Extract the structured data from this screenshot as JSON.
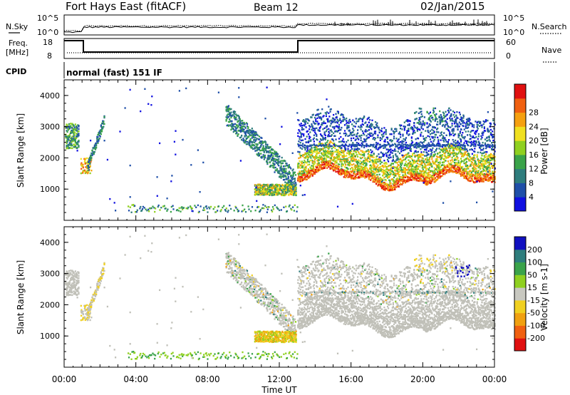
{
  "header": {
    "title": "Fort Hays East (fitACF)",
    "beam": "Beam 12",
    "date": "02/Jan/2015"
  },
  "noise_panel": {
    "left_label": "N.Sky",
    "right_label": "N.Search",
    "ticks": [
      "10^5",
      "10^0"
    ]
  },
  "freq_panel": {
    "left_label_1": "Freq.",
    "left_label_2": "[MHz]",
    "left_ticks": [
      "18",
      "8"
    ],
    "right_label": "Nave",
    "right_ticks": [
      "60",
      "0"
    ]
  },
  "cpid": {
    "label": "CPID",
    "mode": "normal (fast) 151 IF"
  },
  "chart_data": [
    {
      "type": "heatmap",
      "title": "",
      "xlabel": "Time UT",
      "ylabel": "Slant Range [km]",
      "xlim": [
        "00:00",
        "24:00"
      ],
      "ylim": [
        0,
        4500
      ],
      "y_ticks": [
        1000,
        2000,
        3000,
        4000
      ],
      "x_tick_labels": [
        "00:00",
        "04:00",
        "08:00",
        "12:00",
        "16:00",
        "20:00",
        "00:00"
      ],
      "colorbar": {
        "label": "Power [dB]",
        "ticks": [
          4,
          8,
          12,
          16,
          20,
          24,
          28
        ],
        "colors": [
          "#1010e0",
          "#1f4fa8",
          "#2e7d7d",
          "#3aa34a",
          "#8fd020",
          "#f0e020",
          "#f5a010",
          "#f06010",
          "#e01010"
        ]
      }
    },
    {
      "type": "heatmap",
      "title": "",
      "xlabel": "Time UT",
      "ylabel": "Slant Range [km]",
      "xlim": [
        "00:00",
        "24:00"
      ],
      "ylim": [
        0,
        4500
      ],
      "y_ticks": [
        1000,
        2000,
        3000,
        4000
      ],
      "x_tick_labels": [
        "00:00",
        "04:00",
        "08:00",
        "12:00",
        "16:00",
        "20:00",
        "00:00"
      ],
      "colorbar": {
        "label": "Velocity [m s-1]",
        "ticks": [
          "200",
          "100",
          "50",
          "15",
          "-15",
          "-50",
          "-100",
          "-200"
        ],
        "colors": [
          "#1010c0",
          "#2e7d7d",
          "#3aa34a",
          "#8fd020",
          "#c8c8c0",
          "#f0d020",
          "#f0a010",
          "#f06010",
          "#e01010"
        ]
      }
    }
  ],
  "bottom_axis": {
    "xlabel": "Time UT",
    "labels": [
      "00:00",
      "04:00",
      "08:00",
      "12:00",
      "16:00",
      "20:00",
      "00:00"
    ]
  },
  "colors": {
    "ground_scatter": "#c0c0b8",
    "frame": "#000000"
  }
}
